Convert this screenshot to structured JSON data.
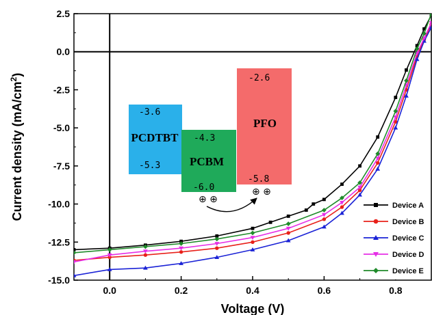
{
  "chart_data": {
    "type": "line",
    "title": "",
    "xlabel": "Voltage (V)",
    "ylabel": "Current density (mA/cm",
    "ylabel_sup": "2",
    "ylabel_end": ")",
    "xlim": [
      -0.1,
      0.9
    ],
    "ylim": [
      -15.0,
      2.5
    ],
    "xticks": [
      0.0,
      0.2,
      0.4,
      0.6,
      0.8
    ],
    "xtick_labels": [
      "0.0",
      "0.2",
      "0.4",
      "0.6",
      "0.8"
    ],
    "yticks": [
      2.5,
      0.0,
      -2.5,
      -5.0,
      -7.5,
      -10.0,
      -12.5,
      -15.0
    ],
    "ytick_labels": [
      "2.5",
      "0.0",
      "-2.5",
      "-5.0",
      "-7.5",
      "-10.0",
      "-12.5",
      "-15.0"
    ],
    "grid": false,
    "legend_position": "bottom-right",
    "series": [
      {
        "name": "Device A",
        "color": "#000000",
        "marker": "square",
        "x": [
          -0.1,
          0.0,
          0.1,
          0.2,
          0.3,
          0.4,
          0.45,
          0.5,
          0.55,
          0.57,
          0.6,
          0.65,
          0.7,
          0.75,
          0.8,
          0.83,
          0.86,
          0.88,
          0.9
        ],
        "y": [
          -13.0,
          -12.9,
          -12.7,
          -12.45,
          -12.1,
          -11.6,
          -11.2,
          -10.8,
          -10.4,
          -10.0,
          -9.7,
          -8.7,
          -7.5,
          -5.6,
          -3.0,
          -1.2,
          0.4,
          1.5,
          2.4
        ]
      },
      {
        "name": "Device B",
        "color": "#e8201a",
        "marker": "circle",
        "x": [
          -0.1,
          0.0,
          0.1,
          0.2,
          0.3,
          0.4,
          0.5,
          0.6,
          0.65,
          0.7,
          0.75,
          0.8,
          0.83,
          0.86,
          0.88,
          0.9
        ],
        "y": [
          -13.7,
          -13.5,
          -13.35,
          -13.15,
          -12.9,
          -12.5,
          -11.9,
          -11.0,
          -10.2,
          -9.1,
          -7.3,
          -4.6,
          -2.5,
          -0.3,
          0.8,
          1.8
        ]
      },
      {
        "name": "Device C",
        "color": "#1a22d6",
        "marker": "triangle-up",
        "x": [
          -0.1,
          0.0,
          0.1,
          0.2,
          0.3,
          0.4,
          0.5,
          0.6,
          0.65,
          0.7,
          0.75,
          0.8,
          0.83,
          0.86,
          0.88,
          0.9
        ],
        "y": [
          -14.7,
          -14.3,
          -14.2,
          -13.9,
          -13.5,
          -13.0,
          -12.4,
          -11.5,
          -10.6,
          -9.4,
          -7.7,
          -5.0,
          -2.9,
          -0.5,
          0.7,
          1.6
        ]
      },
      {
        "name": "Device D",
        "color": "#e62ee6",
        "marker": "triangle-down",
        "x": [
          -0.1,
          0.0,
          0.1,
          0.2,
          0.3,
          0.4,
          0.5,
          0.6,
          0.65,
          0.7,
          0.75,
          0.8,
          0.83,
          0.86,
          0.88,
          0.9
        ],
        "y": [
          -13.8,
          -13.35,
          -13.1,
          -12.9,
          -12.6,
          -12.2,
          -11.6,
          -10.7,
          -9.9,
          -8.9,
          -7.0,
          -4.3,
          -2.2,
          -0.1,
          0.9,
          1.9
        ]
      },
      {
        "name": "Device E",
        "color": "#1f8a2a",
        "marker": "diamond",
        "x": [
          -0.1,
          0.0,
          0.1,
          0.2,
          0.3,
          0.4,
          0.5,
          0.6,
          0.65,
          0.7,
          0.75,
          0.8,
          0.83,
          0.86,
          0.88,
          0.9
        ],
        "y": [
          -13.2,
          -13.0,
          -12.8,
          -12.6,
          -12.3,
          -11.9,
          -11.3,
          -10.4,
          -9.6,
          -8.6,
          -6.7,
          -3.9,
          -1.9,
          0.2,
          1.2,
          2.5
        ]
      }
    ],
    "inset": {
      "materials": [
        {
          "name": "PCDTBT",
          "lumo": "-3.6",
          "homo": "-5.3",
          "color": "#2ab0ea"
        },
        {
          "name": "PCBM",
          "lumo": "-4.3",
          "homo": "-6.0",
          "color": "#1faa5a"
        },
        {
          "name": "PFO",
          "lumo": "-2.6",
          "homo": "-5.8",
          "color": "#f46b6b"
        }
      ],
      "hole_symbols": [
        "⊕ ⊕",
        "⊕ ⊕"
      ]
    }
  }
}
